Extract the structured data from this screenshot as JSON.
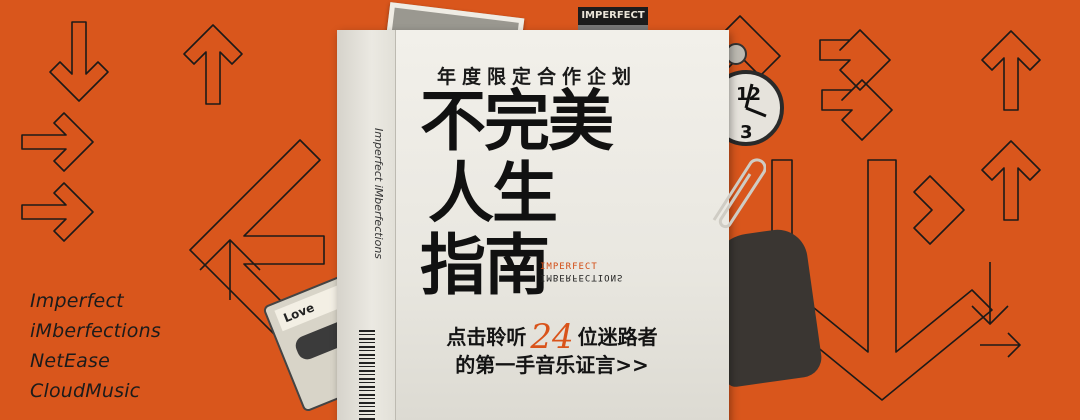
{
  "banner": {
    "kicker": "年度限定合作企划",
    "title_lines": [
      "不完美",
      "人生",
      "指南"
    ],
    "stamp_top": "IMPERFECT",
    "stamp_bottom": "IMBERFECTIONS",
    "cta": {
      "before_number": "点击聆听",
      "number": "24",
      "after_number": "位迷路者",
      "line2": "的第一手音乐证言>>"
    },
    "spine_text": "Imperfect iMberfections",
    "left_text": [
      "Imperfect",
      "iMberfections",
      "NetEase",
      "CloudMusic"
    ],
    "tag_text": "IMPERFECT",
    "cassette_label": "Love",
    "colors": {
      "background": "#d9561c",
      "paper": "#efede6",
      "ink": "#111111",
      "accent": "#d9531a"
    }
  }
}
